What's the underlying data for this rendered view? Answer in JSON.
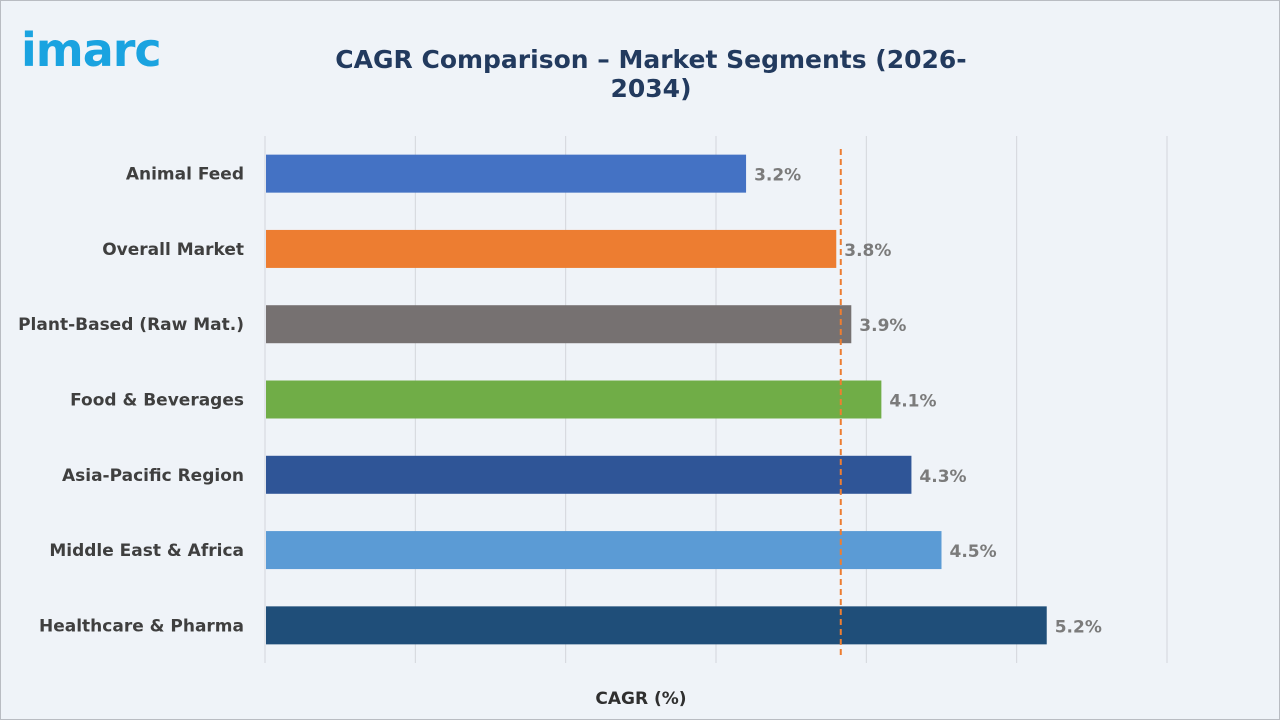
{
  "brand": {
    "logo_text": "imarc",
    "logo_color": "#1aa3e0"
  },
  "title": "CAGR Comparison – Market Segments (2026-2034)",
  "title_color": "#223a5e",
  "chart_data": {
    "type": "bar",
    "orientation": "horizontal",
    "title": "CAGR Comparison – Market Segments (2026-2034)",
    "xlabel": "CAGR (%)",
    "ylabel": "",
    "categories": [
      "Animal Feed",
      "Overall Market",
      "Plant-Based (Raw Mat.)",
      "Food & Beverages",
      "Asia-Pacific Region",
      "Middle East & Africa",
      "Healthcare & Pharma"
    ],
    "values": [
      3.2,
      3.8,
      3.9,
      4.1,
      4.3,
      4.5,
      5.2
    ],
    "value_labels": [
      "3.2%",
      "3.8%",
      "3.9%",
      "4.1%",
      "4.3%",
      "4.5%",
      "5.2%"
    ],
    "colors": [
      "#4472c4",
      "#ed7d31",
      "#767171",
      "#70ad47",
      "#2f5597",
      "#5b9bd5",
      "#1f4e79"
    ],
    "xlim": [
      0,
      6
    ],
    "grid": true,
    "reference_line": {
      "value": 3.83,
      "style": "dashed",
      "color": "#ed7d31"
    }
  }
}
